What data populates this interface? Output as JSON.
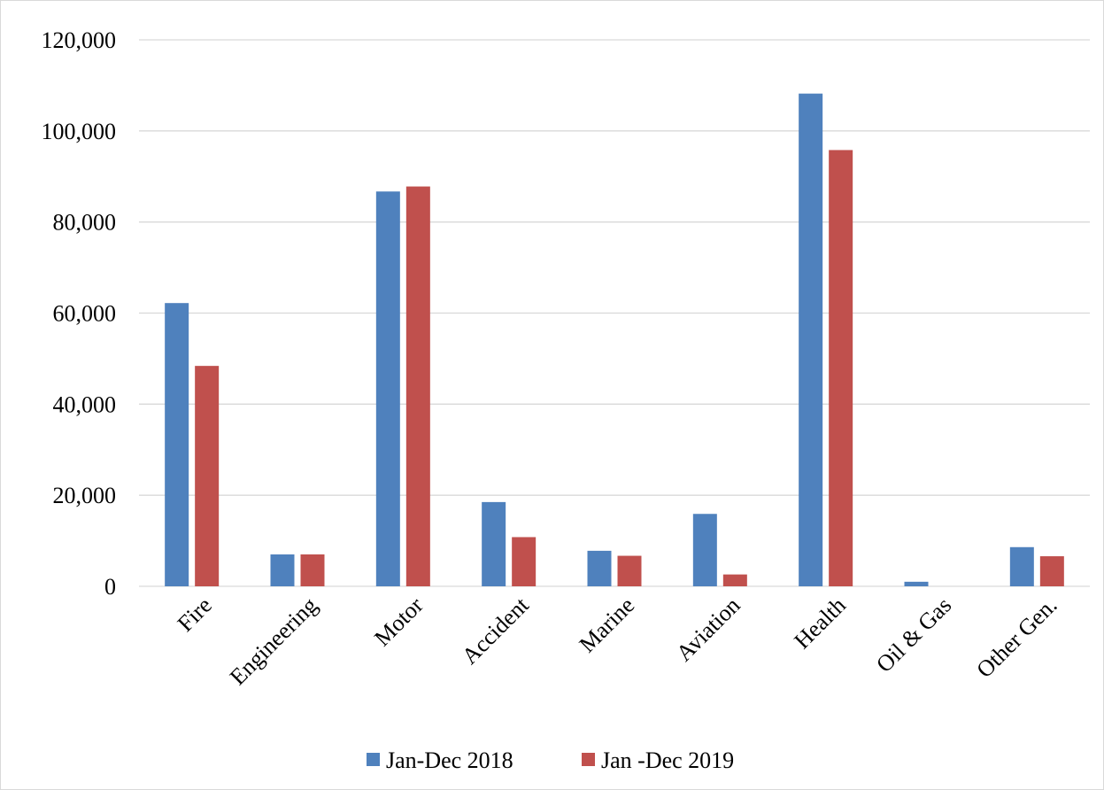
{
  "chart_data": {
    "type": "bar",
    "title": "",
    "xlabel": "",
    "ylabel": "",
    "categories": [
      "Fire",
      "Engineering",
      "Motor",
      "Accident",
      "Marine",
      "Aviation",
      "Health",
      "Oil & Gas",
      "Other Gen."
    ],
    "series": [
      {
        "name": "Jan-Dec 2018",
        "color": "#4f81bd",
        "values": [
          62200,
          7000,
          86700,
          18500,
          7800,
          15900,
          108200,
          1000,
          8600
        ]
      },
      {
        "name": "Jan -Dec 2019",
        "color": "#c0504d",
        "values": [
          48400,
          7000,
          87800,
          10800,
          6700,
          2600,
          95800,
          0,
          6600
        ]
      }
    ],
    "ylim": [
      0,
      120000
    ],
    "yticks": [
      0,
      20000,
      40000,
      60000,
      80000,
      100000,
      120000
    ],
    "ytick_labels": [
      "0",
      "20,000",
      "40,000",
      "60,000",
      "80,000",
      "100,000",
      "120,000"
    ],
    "grid": true,
    "legend_position": "bottom",
    "category_label_rotation": "-45"
  }
}
